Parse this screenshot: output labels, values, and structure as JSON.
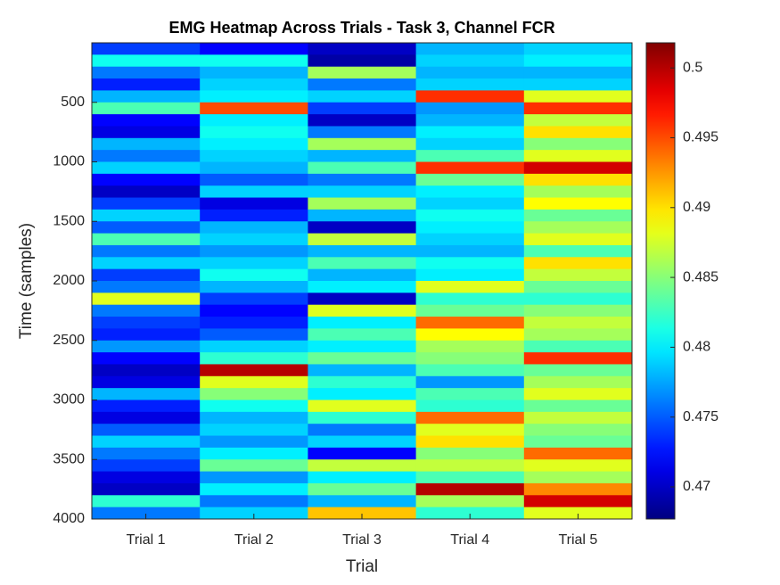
{
  "chart_data": {
    "type": "heatmap",
    "title": "EMG Heatmap Across Trials - Task 3, Channel FCR",
    "xlabel": "Trial",
    "ylabel": "Time (samples)",
    "categories": [
      "Trial 1",
      "Trial 2",
      "Trial 3",
      "Trial 4",
      "Trial 5"
    ],
    "ybins": [
      0,
      100,
      200,
      300,
      400,
      500,
      600,
      700,
      800,
      900,
      1000,
      1100,
      1200,
      1300,
      1400,
      1500,
      1600,
      1700,
      1800,
      1900,
      2000,
      2100,
      2200,
      2300,
      2400,
      2500,
      2600,
      2700,
      2800,
      2900,
      3000,
      3100,
      3200,
      3300,
      3400,
      3500,
      3600,
      3700,
      3800,
      3900,
      4000
    ],
    "z": [
      [
        0.474,
        0.481,
        0.476,
        0.473,
        0.478,
        0.483,
        0.472,
        0.471,
        0.478,
        0.476,
        0.479,
        0.472,
        0.47,
        0.474,
        0.479,
        0.475,
        0.483,
        0.476,
        0.479,
        0.474,
        0.476,
        0.488,
        0.476,
        0.474,
        0.473,
        0.477,
        0.472,
        0.47,
        0.471,
        0.478,
        0.473,
        0.471,
        0.475,
        0.479,
        0.476,
        0.474,
        0.471,
        0.47,
        0.482,
        0.476
      ],
      [
        0.472,
        0.481,
        0.478,
        0.479,
        0.48,
        0.495,
        0.48,
        0.481,
        0.48,
        0.479,
        0.478,
        0.475,
        0.479,
        0.471,
        0.473,
        0.478,
        0.479,
        0.477,
        0.479,
        0.481,
        0.478,
        0.474,
        0.472,
        0.473,
        0.475,
        0.479,
        0.482,
        0.5,
        0.488,
        0.485,
        0.481,
        0.478,
        0.479,
        0.477,
        0.48,
        0.484,
        0.477,
        0.48,
        0.476,
        0.479
      ],
      [
        0.47,
        0.469,
        0.486,
        0.476,
        0.479,
        0.474,
        0.47,
        0.476,
        0.486,
        0.478,
        0.483,
        0.476,
        0.479,
        0.486,
        0.478,
        0.47,
        0.487,
        0.478,
        0.483,
        0.478,
        0.48,
        0.47,
        0.488,
        0.48,
        0.483,
        0.48,
        0.484,
        0.478,
        0.482,
        0.48,
        0.488,
        0.482,
        0.476,
        0.479,
        0.472,
        0.487,
        0.48,
        0.484,
        0.478,
        0.491
      ],
      [
        0.478,
        0.479,
        0.478,
        0.479,
        0.496,
        0.477,
        0.478,
        0.48,
        0.479,
        0.483,
        0.496,
        0.484,
        0.48,
        0.479,
        0.481,
        0.48,
        0.479,
        0.478,
        0.481,
        0.48,
        0.488,
        0.482,
        0.484,
        0.494,
        0.489,
        0.486,
        0.485,
        0.483,
        0.477,
        0.483,
        0.482,
        0.494,
        0.488,
        0.49,
        0.485,
        0.487,
        0.483,
        0.5,
        0.486,
        0.482
      ],
      [
        0.479,
        0.48,
        0.478,
        0.479,
        0.488,
        0.496,
        0.487,
        0.49,
        0.485,
        0.488,
        0.499,
        0.49,
        0.486,
        0.489,
        0.484,
        0.486,
        0.488,
        0.483,
        0.49,
        0.487,
        0.484,
        0.482,
        0.485,
        0.487,
        0.486,
        0.483,
        0.496,
        0.484,
        0.486,
        0.488,
        0.484,
        0.487,
        0.485,
        0.484,
        0.494,
        0.488,
        0.486,
        0.493,
        0.499,
        0.488
      ]
    ],
    "ylim": [
      0,
      4000
    ],
    "yticks": [
      500,
      1000,
      1500,
      2000,
      2500,
      3000,
      3500,
      4000
    ],
    "clim": [
      0.4677,
      0.5018
    ],
    "cticks": [
      0.47,
      0.475,
      0.48,
      0.485,
      0.49,
      0.495,
      0.5
    ],
    "colormap": "jet"
  }
}
